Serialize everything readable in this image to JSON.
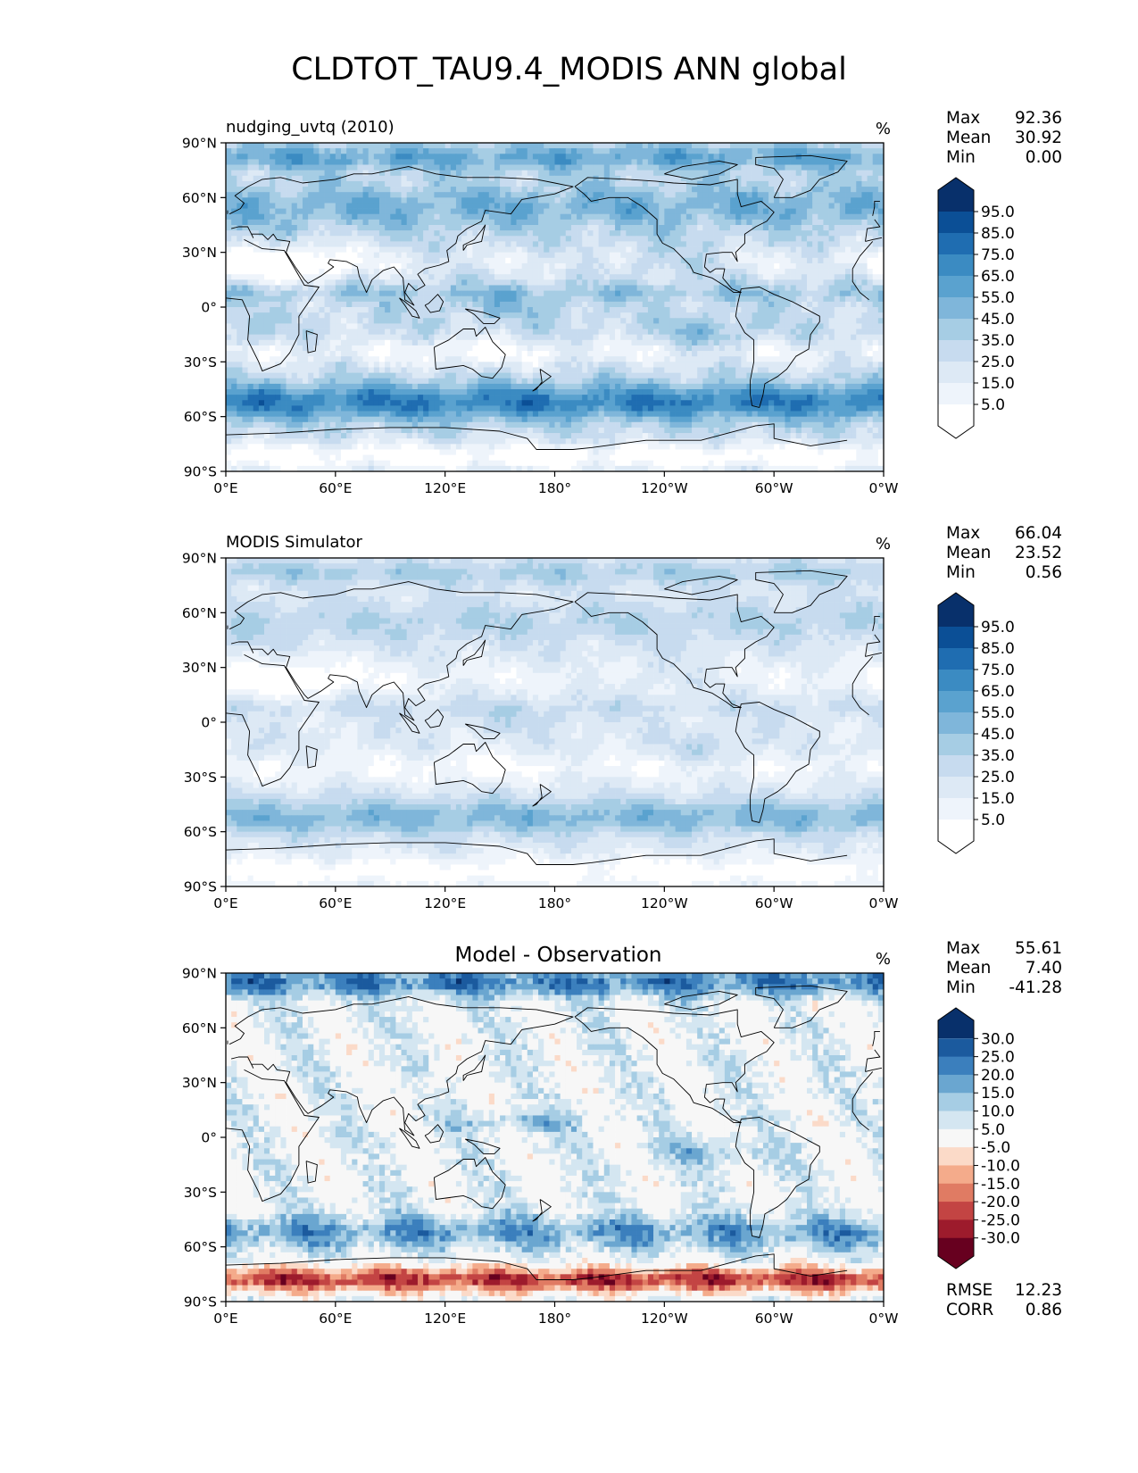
{
  "figure_title": "CLDTOT_TAU9.4_MODIS ANN global",
  "axes": {
    "lat_ticks": [
      "90°N",
      "60°N",
      "30°N",
      "0°",
      "30°S",
      "60°S",
      "90°S"
    ],
    "lon_ticks": [
      "0°E",
      "60°E",
      "120°E",
      "180°",
      "120°W",
      "60°W",
      "0°W"
    ]
  },
  "panels": [
    {
      "label": "nudging_uvtq (2010)",
      "units": "%",
      "stats": [
        {
          "label": "Max",
          "value": "92.36"
        },
        {
          "label": "Mean",
          "value": "30.92"
        },
        {
          "label": "Min",
          "value": "0.00"
        }
      ],
      "colorbar": {
        "levels": [
          "95.0",
          "85.0",
          "75.0",
          "65.0",
          "55.0",
          "45.0",
          "35.0",
          "25.0",
          "15.0",
          "5.0"
        ],
        "colors": [
          "#08306b",
          "#0b4f96",
          "#1f6db1",
          "#3b8bc2",
          "#5aa2cf",
          "#7fb6da",
          "#a6cde4",
          "#c7dbef",
          "#dde9f5",
          "#eef4fb",
          "#ffffff"
        ]
      },
      "field": "model"
    },
    {
      "label": "MODIS Simulator",
      "units": "%",
      "stats": [
        {
          "label": "Max",
          "value": "66.04"
        },
        {
          "label": "Mean",
          "value": "23.52"
        },
        {
          "label": "Min",
          "value": "0.56"
        }
      ],
      "colorbar": {
        "levels": [
          "95.0",
          "85.0",
          "75.0",
          "65.0",
          "55.0",
          "45.0",
          "35.0",
          "25.0",
          "15.0",
          "5.0"
        ],
        "colors": [
          "#08306b",
          "#0b4f96",
          "#1f6db1",
          "#3b8bc2",
          "#5aa2cf",
          "#7fb6da",
          "#a6cde4",
          "#c7dbef",
          "#dde9f5",
          "#eef4fb",
          "#ffffff"
        ]
      },
      "field": "obs"
    },
    {
      "label": "Model - Observation",
      "units": "%",
      "stats": [
        {
          "label": "Max",
          "value": "55.61"
        },
        {
          "label": "Mean",
          "value": "7.40"
        },
        {
          "label": "Min",
          "value": "-41.28"
        }
      ],
      "colorbar": {
        "levels": [
          "30.0",
          "25.0",
          "20.0",
          "15.0",
          "10.0",
          "5.0",
          "-5.0",
          "-10.0",
          "-15.0",
          "-20.0",
          "-25.0",
          "-30.0"
        ],
        "colors": [
          "#08306b",
          "#1b5a9e",
          "#3b7fbd",
          "#6aa6d0",
          "#a6cde4",
          "#d4e6f1",
          "#f7f7f7",
          "#fbdac8",
          "#f4ab8b",
          "#e07b63",
          "#c34443",
          "#9d1b2c",
          "#67001f"
        ]
      },
      "metrics": [
        {
          "label": "RMSE",
          "value": "12.23"
        },
        {
          "label": "CORR",
          "value": "0.86"
        }
      ],
      "field": "diff"
    }
  ]
}
